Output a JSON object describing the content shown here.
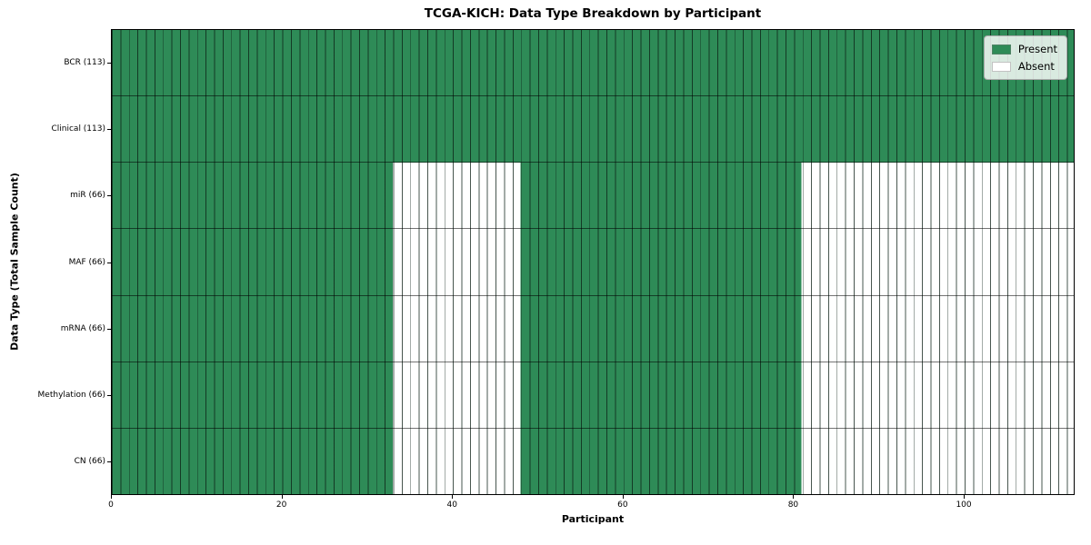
{
  "chart_data": {
    "type": "heatmap",
    "title": "TCGA-KICH: Data Type Breakdown by Participant",
    "xlabel": "Participant",
    "ylabel": "Data Type (Total Sample Count)",
    "x_max": 113,
    "x_ticks": [
      0,
      20,
      40,
      60,
      80,
      100
    ],
    "grid": true,
    "legend_position": "upper right",
    "legend": [
      {
        "label": "Present",
        "color": "#2e8b57"
      },
      {
        "label": "Absent",
        "color": "#ffffff"
      }
    ],
    "colors": {
      "present": "#2e8b57",
      "absent": "#ffffff",
      "cell_line": "rgba(10,30,20,0.75)",
      "row_line": "rgba(0,0,0,0.55)"
    },
    "rows": [
      {
        "label": "BCR (113)",
        "total": 113,
        "present_segments": [
          [
            0,
            113
          ]
        ]
      },
      {
        "label": "Clinical (113)",
        "total": 113,
        "present_segments": [
          [
            0,
            113
          ]
        ]
      },
      {
        "label": "miR (66)",
        "total": 66,
        "present_segments": [
          [
            0,
            33
          ],
          [
            48,
            81
          ]
        ]
      },
      {
        "label": "MAF (66)",
        "total": 66,
        "present_segments": [
          [
            0,
            33
          ],
          [
            48,
            81
          ]
        ]
      },
      {
        "label": "mRNA (66)",
        "total": 66,
        "present_segments": [
          [
            0,
            33
          ],
          [
            48,
            81
          ]
        ]
      },
      {
        "label": "Methylation (66)",
        "total": 66,
        "present_segments": [
          [
            0,
            33
          ],
          [
            48,
            81
          ]
        ]
      },
      {
        "label": "CN (66)",
        "total": 66,
        "present_segments": [
          [
            0,
            33
          ],
          [
            48,
            81
          ]
        ]
      }
    ]
  }
}
